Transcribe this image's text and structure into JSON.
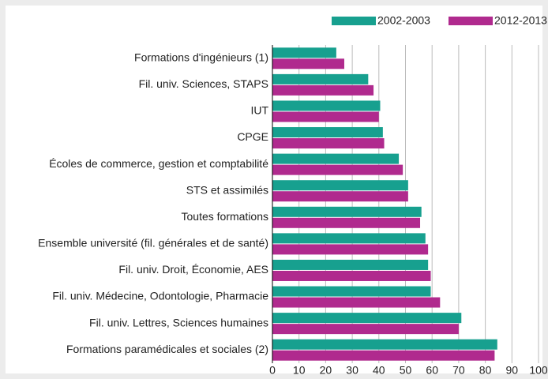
{
  "chart_data": {
    "type": "bar",
    "orientation": "horizontal",
    "categories": [
      "Formations d'ingénieurs (1)",
      "Fil. univ. Sciences, STAPS",
      "IUT",
      "CPGE",
      "Écoles de commerce, gestion et comptabilité",
      "STS et assimilés",
      "Toutes formations",
      "Ensemble université (fil. générales et de santé)",
      "Fil. univ. Droit, Économie, AES",
      "Fil. univ. Médecine, Odontologie, Pharmacie",
      "Fil. univ. Lettres, Sciences humaines",
      "Formations paramédicales et sociales (2)"
    ],
    "series": [
      {
        "name": "2002-2003",
        "color": "#17a08f",
        "values": [
          24,
          36,
          40.5,
          41.5,
          47.5,
          51,
          56,
          57.5,
          58.5,
          59.5,
          71,
          84.5
        ]
      },
      {
        "name": "2012-2013",
        "color": "#b02a8e",
        "values": [
          27,
          38,
          40,
          42,
          49,
          51,
          55.5,
          58.5,
          59.5,
          63,
          70,
          83.5
        ]
      }
    ],
    "xlim": [
      0,
      100
    ],
    "xticks": [
      0,
      10,
      20,
      30,
      40,
      50,
      60,
      70,
      80,
      90,
      100
    ],
    "grid": true,
    "legend": "top-right"
  }
}
